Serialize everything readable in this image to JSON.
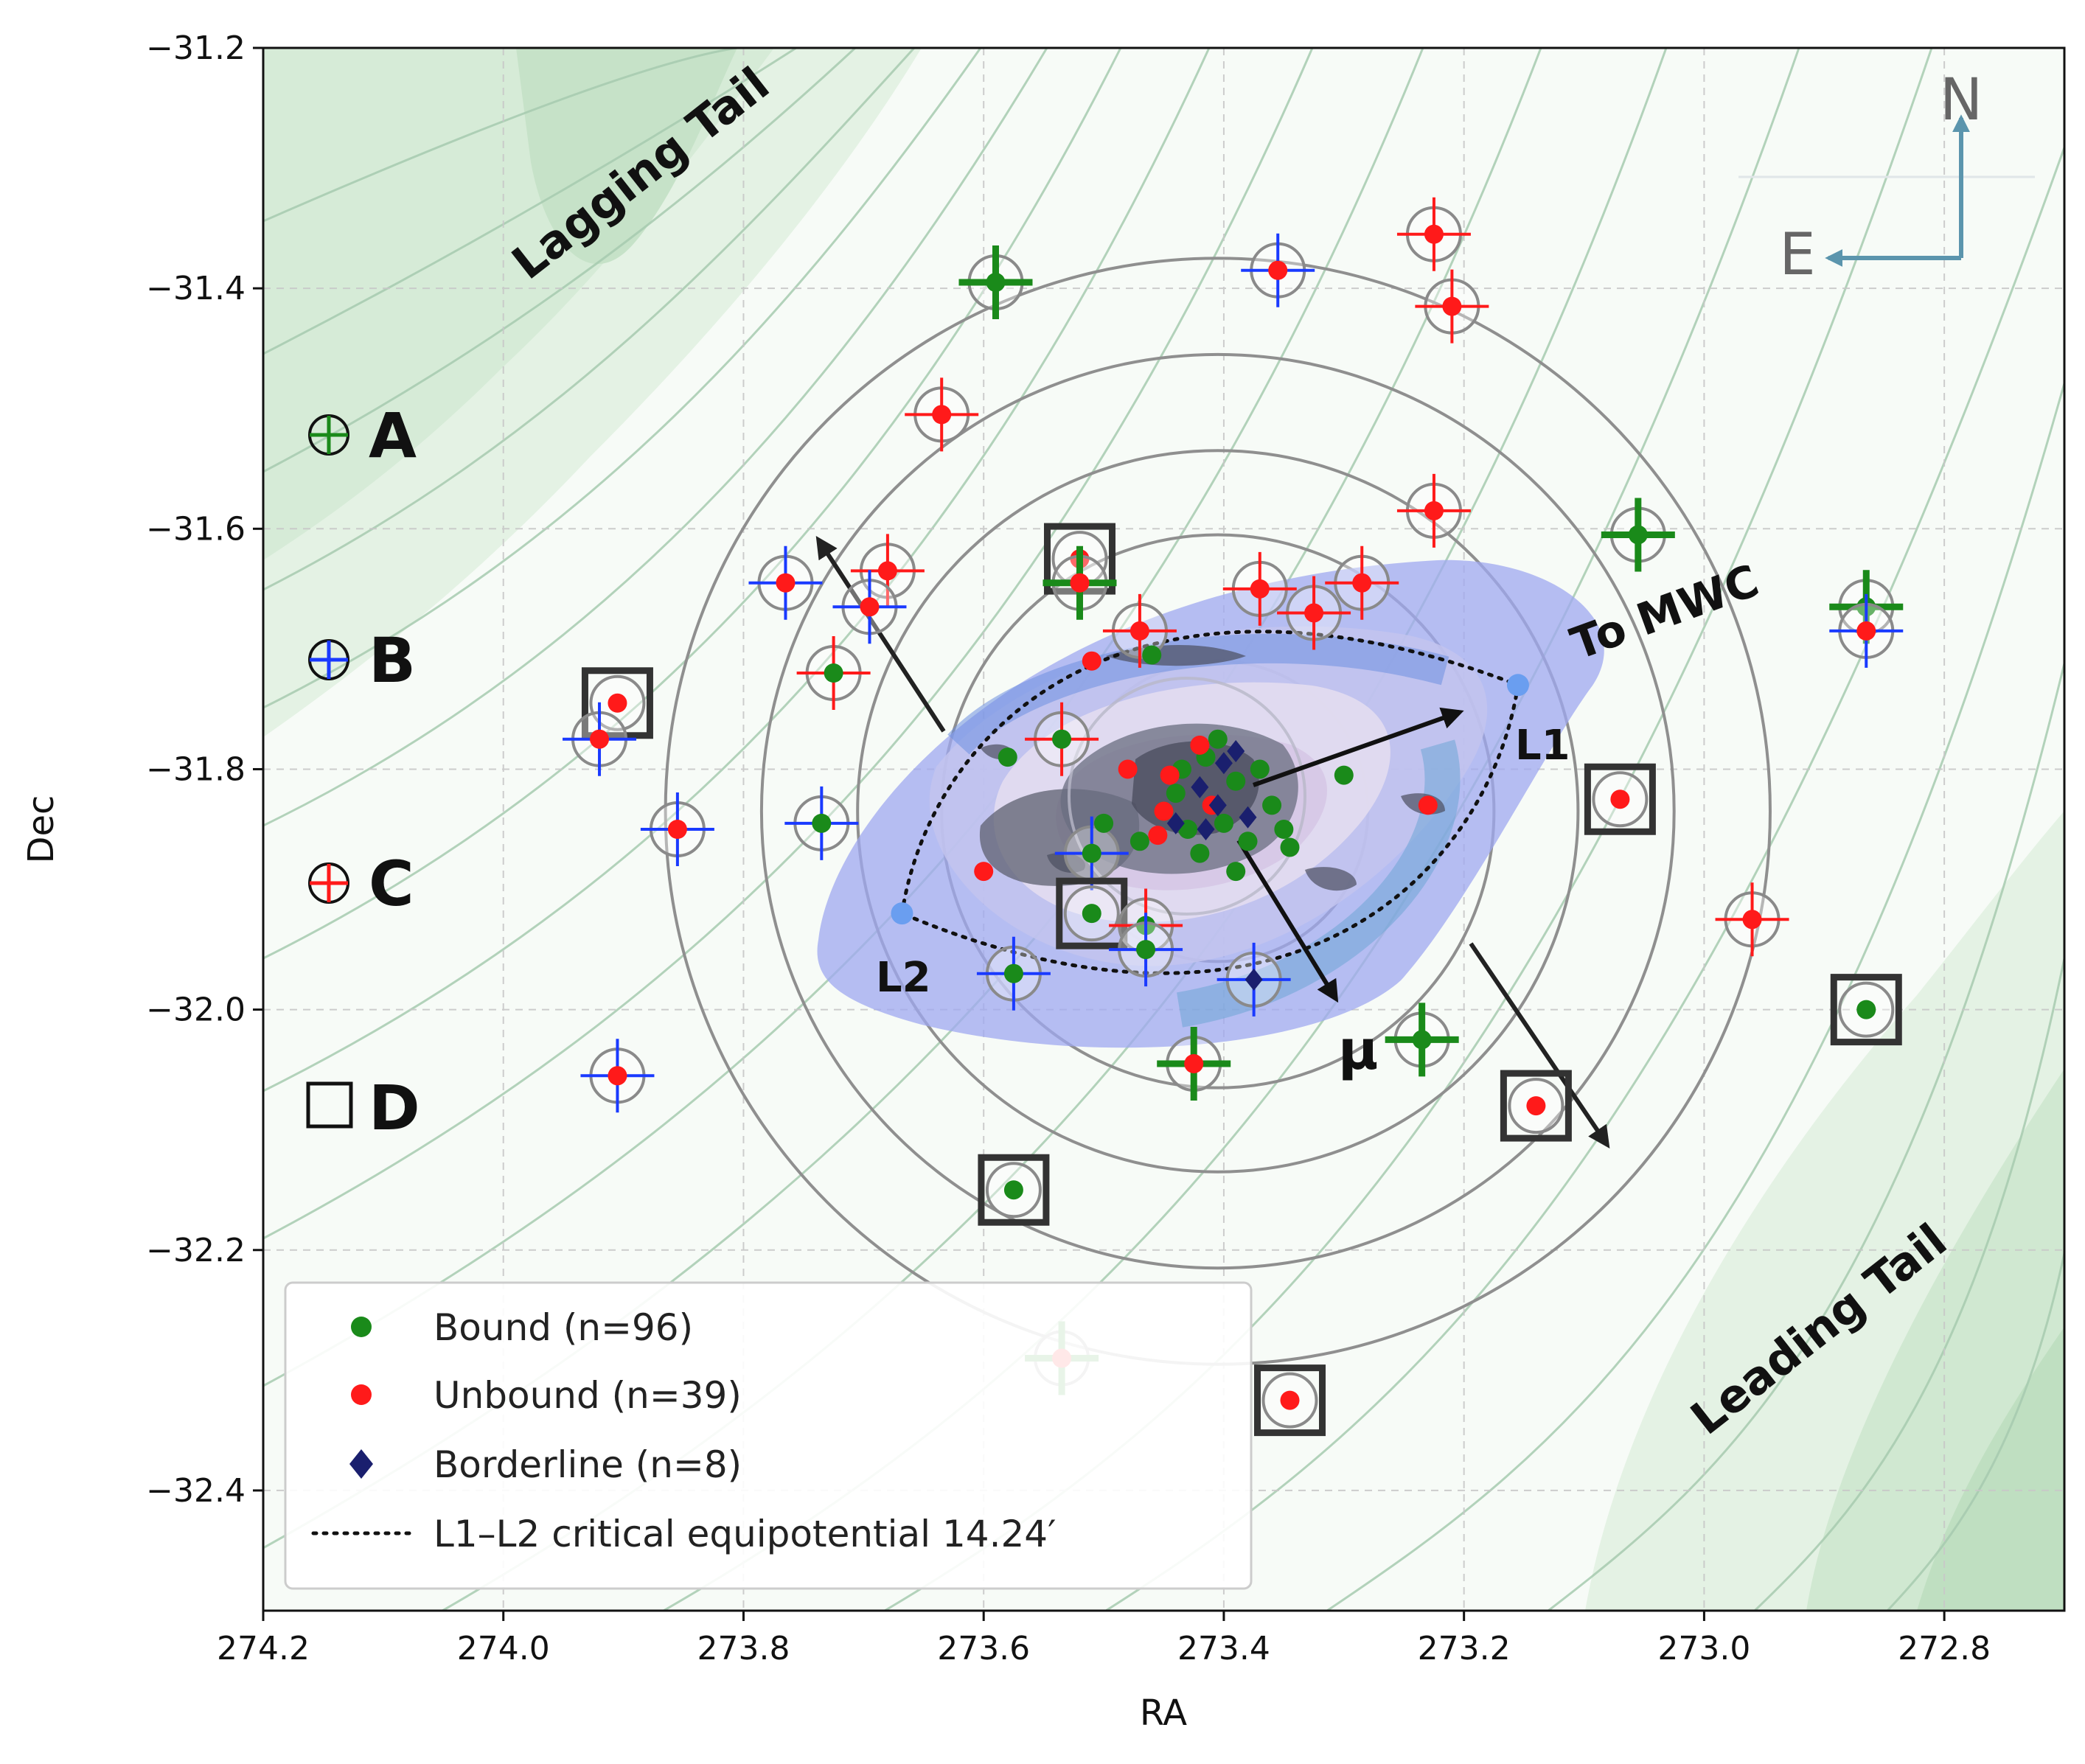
{
  "chart_data": {
    "type": "scatter",
    "xlabel": "RA",
    "ylabel": "Dec",
    "xlim": [
      274.2,
      272.7
    ],
    "ylim": [
      -32.5,
      -31.2
    ],
    "x_inverted": true,
    "xticks": [
      "274.2",
      "274.0",
      "273.8",
      "273.6",
      "273.4",
      "273.2",
      "273.0",
      "272.8"
    ],
    "yticks": [
      "−31.2",
      "−31.4",
      "−31.6",
      "−31.8",
      "−32.0",
      "−32.2",
      "−32.4"
    ],
    "xtick_values": [
      274.2,
      274.0,
      273.8,
      273.6,
      273.4,
      273.2,
      273.0,
      272.8
    ],
    "ytick_values": [
      -31.2,
      -31.4,
      -31.6,
      -31.8,
      -32.0,
      -32.2,
      -32.4
    ],
    "grid": true,
    "legend_position": "lower-left",
    "legend": [
      {
        "label": "Bound (n=96)",
        "marker": "circle",
        "color": "#1a8a1a"
      },
      {
        "label": "Unbound (n=39)",
        "marker": "circle",
        "color": "#ff1a1a"
      },
      {
        "label": "Borderline (n=8)",
        "marker": "diamond",
        "color": "#1a1f6e"
      },
      {
        "label": "L1–L2 critical equipotential 14.24′",
        "marker": "dotted-line",
        "color": "#111111"
      }
    ],
    "category_keys": [
      {
        "label": "A",
        "marker": "circle-cross",
        "color": "#1a8a1a"
      },
      {
        "label": "B",
        "marker": "circle-cross",
        "color": "#1a3aff"
      },
      {
        "label": "C",
        "marker": "circle-cross",
        "color": "#ff1a1a"
      },
      {
        "label": "D",
        "marker": "square",
        "color": "#111111"
      }
    ],
    "annotations": {
      "lagging_tail": "Lagging Tail",
      "leading_tail": "Leading Tail",
      "to_mwc": "To MWC",
      "l1": "L1",
      "l2": "L2",
      "mu": "μ"
    },
    "compass": {
      "north": "N",
      "east": "E"
    },
    "center": {
      "ra": 273.405,
      "dec": -31.835
    },
    "aperture_radii_deg": [
      0.125,
      0.23,
      0.3,
      0.38,
      0.46
    ],
    "lagrange_points": {
      "L1": {
        "ra": 273.155,
        "dec": -31.73
      },
      "L2": {
        "ra": 273.668,
        "dec": -31.92
      }
    },
    "colors": {
      "bound": "#1a8a1a",
      "unbound": "#ff1a1a",
      "borderline": "#1a1f6e",
      "cat_a": "#1a8a1a",
      "cat_b": "#1a3aff",
      "cat_c": "#ff1a1a",
      "density_fill": "#dcefdc",
      "contour": "#9fc4a6",
      "lagrange": "#6a9ef0",
      "compass": "#5b95ad"
    },
    "outer_stars": [
      {
        "ra": 273.59,
        "dec": -31.395,
        "status": "bound",
        "cross": "A"
      },
      {
        "ra": 273.355,
        "dec": -31.385,
        "status": "unbound",
        "cross": "B"
      },
      {
        "ra": 273.225,
        "dec": -31.355,
        "status": "unbound",
        "cross": "C"
      },
      {
        "ra": 273.21,
        "dec": -31.415,
        "status": "unbound",
        "cross": "C"
      },
      {
        "ra": 273.635,
        "dec": -31.505,
        "status": "unbound",
        "cross": "C"
      },
      {
        "ra": 273.225,
        "dec": -31.585,
        "status": "unbound",
        "cross": "C"
      },
      {
        "ra": 273.055,
        "dec": -31.605,
        "status": "bound",
        "cross": "A"
      },
      {
        "ra": 273.52,
        "dec": -31.625,
        "status": "unbound",
        "box": true
      },
      {
        "ra": 273.52,
        "dec": -31.645,
        "status": "unbound",
        "cross": "A"
      },
      {
        "ra": 273.765,
        "dec": -31.645,
        "status": "unbound",
        "cross": "B"
      },
      {
        "ra": 273.68,
        "dec": -31.635,
        "status": "unbound",
        "cross": "C"
      },
      {
        "ra": 273.695,
        "dec": -31.665,
        "status": "unbound",
        "cross": "B"
      },
      {
        "ra": 273.37,
        "dec": -31.65,
        "status": "unbound",
        "cross": "C"
      },
      {
        "ra": 273.325,
        "dec": -31.67,
        "status": "unbound",
        "cross": "C"
      },
      {
        "ra": 273.285,
        "dec": -31.645,
        "status": "unbound",
        "cross": "C"
      },
      {
        "ra": 273.47,
        "dec": -31.685,
        "status": "unbound",
        "cross": "C"
      },
      {
        "ra": 272.865,
        "dec": -31.665,
        "status": "bound",
        "cross": "A"
      },
      {
        "ra": 272.865,
        "dec": -31.685,
        "status": "unbound",
        "cross": "B"
      },
      {
        "ra": 273.725,
        "dec": -31.72,
        "status": "bound",
        "cross": "C"
      },
      {
        "ra": 273.905,
        "dec": -31.745,
        "status": "unbound",
        "box": true
      },
      {
        "ra": 273.92,
        "dec": -31.775,
        "status": "unbound",
        "cross": "B"
      },
      {
        "ra": 273.535,
        "dec": -31.775,
        "status": "bound",
        "cross": "C"
      },
      {
        "ra": 273.855,
        "dec": -31.85,
        "status": "unbound",
        "cross": "B"
      },
      {
        "ra": 273.735,
        "dec": -31.845,
        "status": "bound",
        "cross": "B"
      },
      {
        "ra": 273.07,
        "dec": -31.825,
        "status": "unbound",
        "box": true
      },
      {
        "ra": 273.51,
        "dec": -31.87,
        "status": "bound",
        "cross": "B"
      },
      {
        "ra": 273.51,
        "dec": -31.92,
        "status": "bound",
        "box": true
      },
      {
        "ra": 273.465,
        "dec": -31.93,
        "status": "bound",
        "cross": "C"
      },
      {
        "ra": 273.465,
        "dec": -31.95,
        "status": "bound",
        "cross": "B"
      },
      {
        "ra": 273.575,
        "dec": -31.97,
        "status": "bound",
        "cross": "B"
      },
      {
        "ra": 273.375,
        "dec": -31.975,
        "status": "borderline",
        "cross": "B"
      },
      {
        "ra": 272.96,
        "dec": -31.925,
        "status": "unbound",
        "cross": "C"
      },
      {
        "ra": 272.865,
        "dec": -32.0,
        "status": "bound",
        "box": true
      },
      {
        "ra": 273.425,
        "dec": -32.045,
        "status": "unbound",
        "cross": "A"
      },
      {
        "ra": 273.235,
        "dec": -32.025,
        "status": "bound",
        "cross": "A"
      },
      {
        "ra": 273.905,
        "dec": -32.055,
        "status": "unbound",
        "cross": "B"
      },
      {
        "ra": 273.14,
        "dec": -32.08,
        "status": "unbound",
        "box": true
      },
      {
        "ra": 273.575,
        "dec": -32.15,
        "status": "bound",
        "box": true
      },
      {
        "ra": 273.535,
        "dec": -32.29,
        "status": "unbound",
        "cross": "A"
      },
      {
        "ra": 273.345,
        "dec": -32.325,
        "status": "unbound",
        "box": true
      }
    ],
    "inner_stars": [
      {
        "ra": 273.415,
        "dec": -31.79,
        "status": "bound"
      },
      {
        "ra": 273.39,
        "dec": -31.81,
        "status": "bound"
      },
      {
        "ra": 273.44,
        "dec": -31.82,
        "status": "bound"
      },
      {
        "ra": 273.36,
        "dec": -31.83,
        "status": "bound"
      },
      {
        "ra": 273.4,
        "dec": -31.845,
        "status": "bound"
      },
      {
        "ra": 273.43,
        "dec": -31.85,
        "status": "bound"
      },
      {
        "ra": 273.38,
        "dec": -31.86,
        "status": "bound"
      },
      {
        "ra": 273.45,
        "dec": -31.835,
        "status": "bound"
      },
      {
        "ra": 273.37,
        "dec": -31.8,
        "status": "bound"
      },
      {
        "ra": 273.42,
        "dec": -31.87,
        "status": "bound"
      },
      {
        "ra": 273.47,
        "dec": -31.86,
        "status": "bound"
      },
      {
        "ra": 273.35,
        "dec": -31.85,
        "status": "bound"
      },
      {
        "ra": 273.405,
        "dec": -31.775,
        "status": "bound"
      },
      {
        "ra": 273.39,
        "dec": -31.885,
        "status": "bound"
      },
      {
        "ra": 273.58,
        "dec": -31.79,
        "status": "bound"
      },
      {
        "ra": 273.3,
        "dec": -31.805,
        "status": "bound"
      },
      {
        "ra": 273.46,
        "dec": -31.705,
        "status": "bound"
      },
      {
        "ra": 273.5,
        "dec": -31.845,
        "status": "bound"
      },
      {
        "ra": 273.435,
        "dec": -31.8,
        "status": "bound"
      },
      {
        "ra": 273.345,
        "dec": -31.865,
        "status": "bound"
      },
      {
        "ra": 273.41,
        "dec": -31.83,
        "status": "unbound"
      },
      {
        "ra": 273.445,
        "dec": -31.805,
        "status": "unbound"
      },
      {
        "ra": 273.455,
        "dec": -31.855,
        "status": "unbound"
      },
      {
        "ra": 273.48,
        "dec": -31.8,
        "status": "unbound"
      },
      {
        "ra": 273.42,
        "dec": -31.78,
        "status": "unbound"
      },
      {
        "ra": 273.6,
        "dec": -31.885,
        "status": "unbound"
      },
      {
        "ra": 273.51,
        "dec": -31.71,
        "status": "unbound"
      },
      {
        "ra": 273.23,
        "dec": -31.83,
        "status": "unbound"
      },
      {
        "ra": 273.45,
        "dec": -31.835,
        "status": "unbound"
      },
      {
        "ra": 273.4,
        "dec": -31.795,
        "status": "borderline"
      },
      {
        "ra": 273.42,
        "dec": -31.815,
        "status": "borderline"
      },
      {
        "ra": 273.38,
        "dec": -31.84,
        "status": "borderline"
      },
      {
        "ra": 273.415,
        "dec": -31.85,
        "status": "borderline"
      },
      {
        "ra": 273.39,
        "dec": -31.785,
        "status": "borderline"
      },
      {
        "ra": 273.44,
        "dec": -31.845,
        "status": "borderline"
      },
      {
        "ra": 273.405,
        "dec": -31.83,
        "status": "borderline"
      }
    ]
  }
}
